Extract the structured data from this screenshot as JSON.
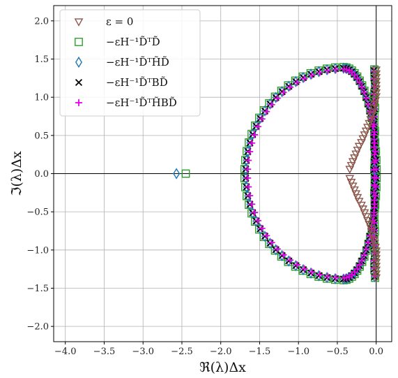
{
  "chart_data": {
    "type": "scatter",
    "xlabel": "ℜ(λ)Δx",
    "ylabel": "ℑ(λ)Δx",
    "xlim": [
      -4.15,
      0.2
    ],
    "ylim": [
      -2.2,
      2.2
    ],
    "xticks": [
      -4.0,
      -3.5,
      -3.0,
      -2.5,
      -2.0,
      -1.5,
      -1.0,
      -0.5,
      0.0
    ],
    "yticks": [
      -2.0,
      -1.5,
      -1.0,
      -0.5,
      0.0,
      0.5,
      1.0,
      1.5,
      2.0
    ],
    "xtick_labels": [
      "−4.0",
      "−3.5",
      "−3.0",
      "−2.5",
      "−2.0",
      "−1.5",
      "−1.0",
      "−0.5",
      "0.0"
    ],
    "ytick_labels": [
      "−2.0",
      "−1.5",
      "−1.0",
      "−0.5",
      "0.0",
      "0.5",
      "1.0",
      "1.5",
      "2.0"
    ],
    "grid": true,
    "legend_position": "top-left",
    "series": [
      {
        "name": "ε = 0",
        "marker": "triangle-down-open",
        "color": "#8c564b",
        "points": [
          [
            0.0,
            1.36
          ],
          [
            0.0,
            1.31
          ],
          [
            0.0,
            1.26
          ],
          [
            0.0,
            1.21
          ],
          [
            0.0,
            1.16
          ],
          [
            0.0,
            1.11
          ],
          [
            0.0,
            1.06
          ],
          [
            0.0,
            1.01
          ],
          [
            -0.01,
            0.96
          ],
          [
            -0.02,
            0.91
          ],
          [
            -0.03,
            0.86
          ],
          [
            -0.04,
            0.81
          ],
          [
            -0.06,
            0.76
          ],
          [
            -0.07,
            0.71
          ],
          [
            -0.09,
            0.66
          ],
          [
            -0.11,
            0.61
          ],
          [
            -0.13,
            0.56
          ],
          [
            -0.15,
            0.51
          ],
          [
            -0.17,
            0.46
          ],
          [
            -0.19,
            0.41
          ],
          [
            -0.22,
            0.36
          ],
          [
            -0.24,
            0.31
          ],
          [
            -0.26,
            0.26
          ],
          [
            -0.28,
            0.21
          ],
          [
            -0.3,
            0.16
          ],
          [
            -0.32,
            0.11
          ],
          [
            -0.34,
            0.06
          ],
          [
            -0.34,
            -0.06
          ],
          [
            -0.32,
            -0.11
          ],
          [
            -0.3,
            -0.16
          ],
          [
            -0.28,
            -0.21
          ],
          [
            -0.26,
            -0.26
          ],
          [
            -0.24,
            -0.31
          ],
          [
            -0.22,
            -0.36
          ],
          [
            -0.19,
            -0.41
          ],
          [
            -0.17,
            -0.46
          ],
          [
            -0.15,
            -0.51
          ],
          [
            -0.13,
            -0.56
          ],
          [
            -0.11,
            -0.61
          ],
          [
            -0.09,
            -0.66
          ],
          [
            -0.07,
            -0.71
          ],
          [
            -0.06,
            -0.76
          ],
          [
            -0.04,
            -0.81
          ],
          [
            -0.03,
            -0.86
          ],
          [
            -0.02,
            -0.91
          ],
          [
            -0.01,
            -0.96
          ],
          [
            0.0,
            -1.01
          ],
          [
            0.0,
            -1.06
          ],
          [
            0.0,
            -1.11
          ],
          [
            0.0,
            -1.16
          ],
          [
            0.0,
            -1.21
          ],
          [
            0.0,
            -1.26
          ],
          [
            0.0,
            -1.31
          ],
          [
            0.0,
            -1.36
          ]
        ]
      },
      {
        "name": "−εH⁻¹D̃ᵀD̃",
        "marker": "square-open",
        "color": "#2ca02c",
        "points": [
          [
            -2.45,
            0.0
          ]
        ]
      },
      {
        "name": "−εH⁻¹D̃ᵀH̃D̃",
        "marker": "diamond-open",
        "color": "#1f77b4",
        "points": [
          [
            -2.57,
            0.0
          ]
        ]
      },
      {
        "name": "−εH⁻¹D̃ᵀBD̃",
        "marker": "x",
        "color": "#000000",
        "points": []
      },
      {
        "name": "−εH⁻¹D̃ᵀH̃BD̃",
        "marker": "plus",
        "color": "#e600e6",
        "points": []
      }
    ],
    "shared_curve": {
      "note": "The four dissipative series coincide along the same closed eigenvalue curve",
      "min_real": -1.68,
      "max_imag": 1.38,
      "center_real": -0.42
    }
  }
}
